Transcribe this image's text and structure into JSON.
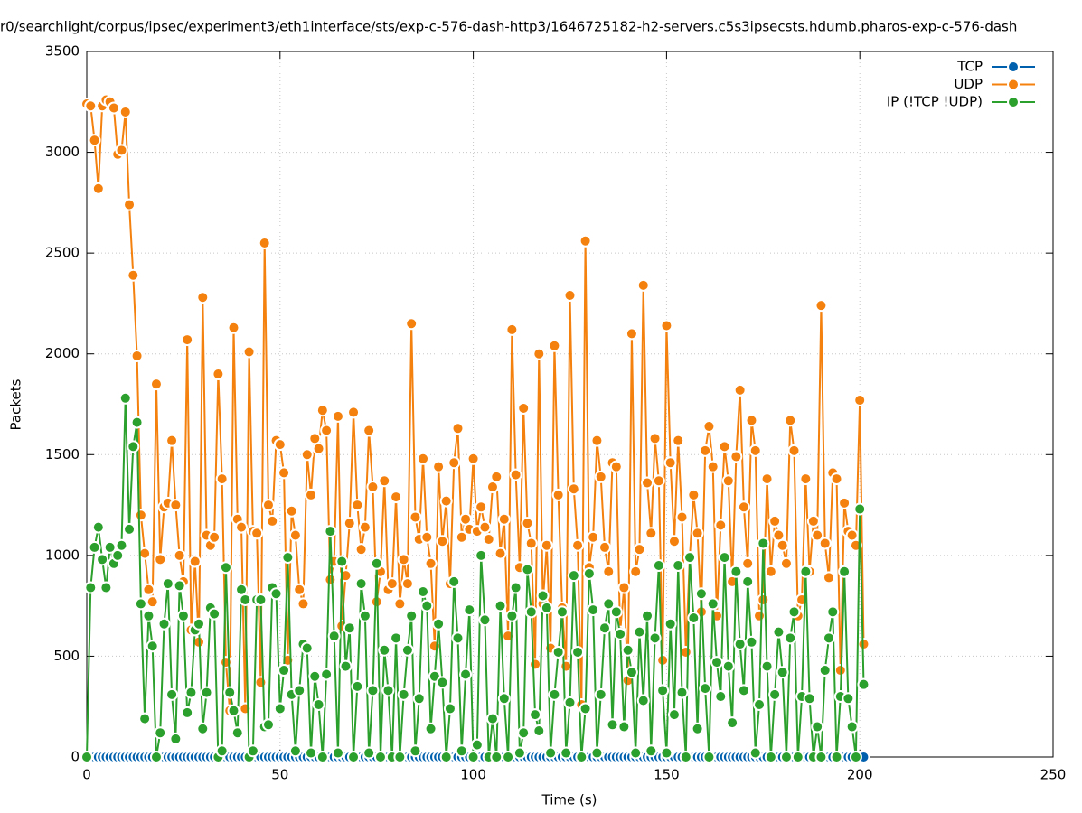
{
  "chart_data": {
    "type": "line",
    "title": "r0/searchlight/corpus/ipsec/experiment3/eth1interface/sts/exp-c-576-dash-http3/1646725182-h2-servers.c5s3ipsecsts.hdumb.pharos-exp-c-576-dash",
    "x_label": "Time (s)",
    "y_label": "Packets",
    "xlim": [
      0,
      250
    ],
    "xticks": [
      0,
      50,
      100,
      150,
      200,
      250
    ],
    "ylim": [
      0,
      3500
    ],
    "yticks": [
      0,
      500,
      1000,
      1500,
      2000,
      2500,
      3000,
      3500
    ],
    "grid": true,
    "legend": "top-right",
    "x": [
      0,
      1,
      2,
      3,
      4,
      5,
      6,
      7,
      8,
      9,
      10,
      11,
      12,
      13,
      14,
      15,
      16,
      17,
      18,
      19,
      20,
      21,
      22,
      23,
      24,
      25,
      26,
      27,
      28,
      29,
      30,
      31,
      32,
      33,
      34,
      35,
      36,
      37,
      38,
      39,
      40,
      41,
      42,
      43,
      44,
      45,
      46,
      47,
      48,
      49,
      50,
      51,
      52,
      53,
      54,
      55,
      56,
      57,
      58,
      59,
      60,
      61,
      62,
      63,
      64,
      65,
      66,
      67,
      68,
      69,
      70,
      71,
      72,
      73,
      74,
      75,
      76,
      77,
      78,
      79,
      80,
      81,
      82,
      83,
      84,
      85,
      86,
      87,
      88,
      89,
      90,
      91,
      92,
      93,
      94,
      95,
      96,
      97,
      98,
      99,
      100,
      101,
      102,
      103,
      104,
      105,
      106,
      107,
      108,
      109,
      110,
      111,
      112,
      113,
      114,
      115,
      116,
      117,
      118,
      119,
      120,
      121,
      122,
      123,
      124,
      125,
      126,
      127,
      128,
      129,
      130,
      131,
      132,
      133,
      134,
      135,
      136,
      137,
      138,
      139,
      140,
      141,
      142,
      143,
      144,
      145,
      146,
      147,
      148,
      149,
      150,
      151,
      152,
      153,
      154,
      155,
      156,
      157,
      158,
      159,
      160,
      161,
      162,
      163,
      164,
      165,
      166,
      167,
      168,
      169,
      170,
      171,
      172,
      173,
      174,
      175,
      176,
      177,
      178,
      179,
      180,
      181,
      182,
      183,
      184,
      185,
      186,
      187,
      188,
      189,
      190,
      191,
      192,
      193,
      194,
      195,
      196,
      197,
      198,
      199,
      200,
      201
    ],
    "series": [
      {
        "name": "TCP",
        "color": "#0060ad",
        "values": [
          0,
          0,
          0,
          0,
          0,
          0,
          0,
          0,
          0,
          0,
          0,
          0,
          0,
          0,
          0,
          0,
          0,
          0,
          0,
          0,
          0,
          0,
          0,
          0,
          0,
          0,
          0,
          0,
          0,
          0,
          0,
          0,
          0,
          0,
          0,
          0,
          0,
          0,
          0,
          0,
          0,
          0,
          0,
          0,
          0,
          0,
          0,
          0,
          0,
          0,
          0,
          0,
          0,
          0,
          0,
          0,
          0,
          0,
          0,
          0,
          0,
          0,
          0,
          0,
          0,
          0,
          0,
          0,
          0,
          0,
          0,
          0,
          0,
          0,
          0,
          0,
          0,
          0,
          0,
          0,
          0,
          0,
          0,
          0,
          0,
          0,
          0,
          0,
          0,
          0,
          0,
          0,
          0,
          0,
          0,
          0,
          0,
          0,
          0,
          0,
          0,
          0,
          0,
          0,
          0,
          0,
          0,
          0,
          0,
          0,
          0,
          0,
          0,
          0,
          0,
          0,
          0,
          0,
          0,
          0,
          0,
          0,
          0,
          0,
          0,
          0,
          0,
          0,
          0,
          0,
          0,
          0,
          0,
          0,
          0,
          0,
          0,
          0,
          0,
          0,
          0,
          0,
          0,
          0,
          0,
          0,
          0,
          0,
          0,
          0,
          0,
          0,
          0,
          0,
          0,
          0,
          0,
          0,
          0,
          0,
          0,
          0,
          0,
          0,
          0,
          0,
          0,
          0,
          0,
          0,
          0,
          0,
          0,
          0,
          0,
          0,
          0,
          0,
          0,
          0,
          0,
          0,
          0,
          0,
          0,
          0,
          0,
          0,
          0,
          0,
          0,
          0,
          0,
          0,
          0,
          0,
          0,
          0,
          0,
          0,
          0,
          0
        ]
      },
      {
        "name": "UDP",
        "color": "#f4800d",
        "values": [
          3240,
          3230,
          3060,
          2820,
          3230,
          3260,
          3250,
          3220,
          2990,
          3010,
          3200,
          2740,
          2390,
          1990,
          1200,
          1010,
          830,
          770,
          1850,
          980,
          1240,
          1260,
          1570,
          1250,
          1000,
          870,
          2070,
          630,
          970,
          570,
          2280,
          1100,
          1050,
          1090,
          1900,
          1380,
          470,
          230,
          2130,
          1180,
          1140,
          240,
          2010,
          1120,
          1110,
          370,
          2550,
          1250,
          1170,
          1570,
          1550,
          1410,
          480,
          1220,
          1100,
          830,
          760,
          1500,
          1300,
          1580,
          1530,
          1720,
          1620,
          880,
          970,
          1690,
          650,
          900,
          1160,
          1710,
          1250,
          1030,
          1140,
          1620,
          1340,
          770,
          920,
          1370,
          830,
          860,
          1290,
          760,
          980,
          860,
          2150,
          1190,
          1080,
          1480,
          1090,
          960,
          550,
          1440,
          1070,
          1270,
          860,
          1460,
          1630,
          1090,
          1180,
          1130,
          1480,
          1120,
          1240,
          1140,
          1080,
          1340,
          1390,
          1010,
          1180,
          600,
          2120,
          1400,
          940,
          1730,
          1160,
          1060,
          460,
          2000,
          760,
          1050,
          540,
          2040,
          1300,
          740,
          450,
          2290,
          1330,
          1050,
          260,
          2560,
          940,
          1090,
          1570,
          1390,
          1040,
          920,
          1460,
          1440,
          620,
          840,
          380,
          2100,
          920,
          1030,
          2340,
          1360,
          1110,
          1580,
          1370,
          480,
          2140,
          1460,
          1070,
          1570,
          1190,
          520,
          990,
          1300,
          1110,
          720,
          1520,
          1640,
          1440,
          700,
          1150,
          1540,
          1370,
          870,
          1490,
          1820,
          1240,
          960,
          1670,
          1520,
          700,
          780,
          1380,
          920,
          1170,
          1100,
          1050,
          960,
          1670,
          1520,
          700,
          780,
          1380,
          920,
          1170,
          1100,
          2240,
          1060,
          890,
          1410,
          1380,
          430,
          1260,
          1120,
          1100,
          1050,
          1770,
          560
        ]
      },
      {
        "name": "IP (!TCP  !UDP)",
        "color": "#2ca02c",
        "values": [
          0,
          840,
          1040,
          1140,
          980,
          840,
          1040,
          960,
          1000,
          1050,
          1780,
          1130,
          1540,
          1660,
          760,
          190,
          700,
          550,
          0,
          120,
          660,
          860,
          310,
          90,
          850,
          700,
          220,
          320,
          630,
          660,
          140,
          320,
          740,
          710,
          0,
          30,
          940,
          320,
          230,
          120,
          830,
          780,
          0,
          30,
          780,
          780,
          150,
          160,
          840,
          810,
          240,
          430,
          990,
          310,
          30,
          330,
          560,
          540,
          20,
          400,
          260,
          0,
          410,
          1120,
          600,
          20,
          970,
          450,
          640,
          0,
          350,
          860,
          700,
          20,
          330,
          960,
          0,
          530,
          330,
          0,
          590,
          0,
          310,
          530,
          700,
          30,
          290,
          820,
          750,
          140,
          400,
          660,
          370,
          0,
          240,
          870,
          590,
          30,
          410,
          730,
          0,
          60,
          1000,
          680,
          0,
          190,
          0,
          750,
          290,
          0,
          700,
          840,
          20,
          120,
          930,
          720,
          210,
          130,
          800,
          740,
          20,
          310,
          520,
          720,
          20,
          270,
          900,
          520,
          0,
          240,
          910,
          730,
          20,
          310,
          640,
          760,
          160,
          720,
          610,
          150,
          530,
          420,
          20,
          620,
          280,
          700,
          30,
          590,
          950,
          330,
          20,
          660,
          210,
          950,
          320,
          0,
          990,
          690,
          140,
          810,
          340,
          0,
          760,
          470,
          300,
          990,
          450,
          170,
          920,
          560,
          330,
          870,
          570,
          20,
          260,
          1060,
          450,
          0,
          310,
          620,
          420,
          0,
          590,
          720,
          0,
          300,
          920,
          290,
          0,
          150,
          0,
          430,
          590,
          720,
          0,
          300,
          920,
          290,
          150,
          0,
          1230,
          360
        ]
      }
    ]
  }
}
